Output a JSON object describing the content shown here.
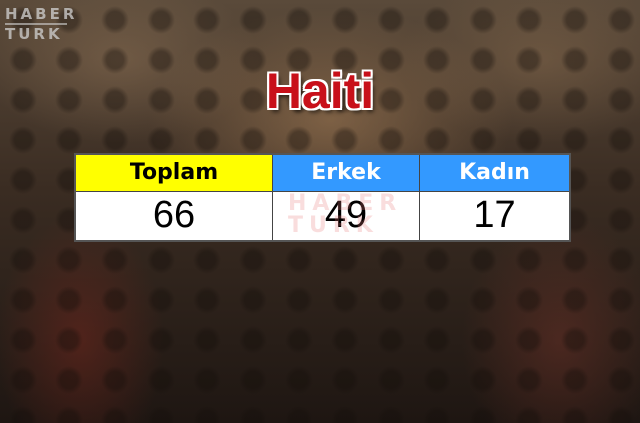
{
  "logo": {
    "line1": "HABER",
    "line2": "TURK"
  },
  "title": "Haiti",
  "table": {
    "headers": [
      "Toplam",
      "Erkek",
      "Kadın"
    ],
    "values": [
      "66",
      "49",
      "17"
    ]
  },
  "colors": {
    "title": "#c8101a",
    "toplam_header": "#ffff00",
    "gender_header": "#3399ff"
  }
}
